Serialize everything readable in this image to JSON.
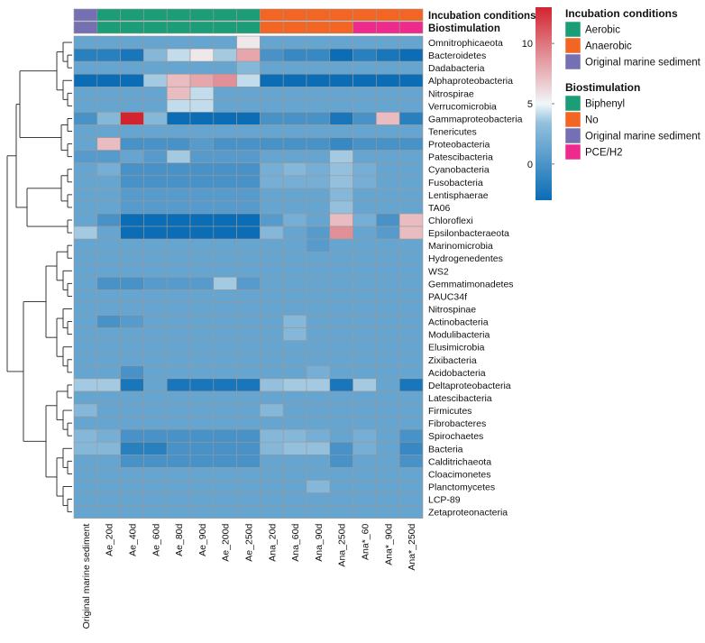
{
  "chart_data": {
    "type": "heatmap",
    "title": "",
    "columns": [
      "Original marine sediment",
      "Ae_20d",
      "Ae_40d",
      "Ae_60d",
      "Ae_80d",
      "Ae_90d",
      "Ae_200d",
      "Ae_250d",
      "Ana_20d",
      "Ana_60d",
      "Ana_90d",
      "Ana_250d",
      "Ana*_60",
      "Ana*_90d",
      "Ana*_250d"
    ],
    "rows": [
      "Omnitrophicaeota",
      "Bacteroidetes",
      "Dadabacteria",
      "Alphaproteobacteria",
      "Nitrospirae",
      "Verrucomicrobia",
      "Gammaproteobacteria",
      "Tenericutes",
      "Proteobacteria",
      "Patescibacteria",
      "Cyanobacteria",
      "Fusobacteria",
      "Lentisphaerae",
      "TA06",
      "Chloroflexi",
      "Epsilonbacteraeota",
      "Marinomicrobia",
      "Hydrogenedentes",
      "WS2",
      "Gemmatimonadetes",
      "PAUC34f",
      "Nitrospinae",
      "Actinobacteria",
      "Modulibacteria",
      "Elusimicrobia",
      "Zixibacteria",
      "Acidobacteria",
      "Deltaproteobacteria",
      "Latescibacteria",
      "Firmicutes",
      "Fibrobacteres",
      "Spirochaetes",
      "Bacteria",
      "Calditrichaeota",
      "Cloacimonetes",
      "Planctomycetes",
      "LCP-89",
      "Zetaproteonacteria"
    ],
    "values": [
      [
        0,
        0,
        0,
        0,
        0,
        0,
        0,
        4,
        0,
        0,
        0,
        0,
        0,
        0,
        0
      ],
      [
        -2,
        -2,
        -2.5,
        1,
        3,
        4,
        2,
        7,
        -1,
        -1.5,
        -1.5,
        -3,
        -2,
        -2.5,
        -3
      ],
      [
        0,
        0,
        0,
        0,
        0,
        0,
        0,
        1,
        0,
        0,
        0,
        0,
        0,
        0,
        0
      ],
      [
        -3,
        -3,
        -3,
        2,
        6,
        7,
        8,
        3,
        -3,
        -3,
        -3,
        -3,
        -3,
        -3,
        -3
      ],
      [
        0,
        0,
        0,
        0,
        6,
        3,
        0,
        0,
        0,
        0,
        0,
        0,
        0,
        0,
        0
      ],
      [
        0,
        0,
        0,
        0,
        3,
        3,
        0,
        0,
        0,
        0,
        0,
        0,
        0,
        0,
        0
      ],
      [
        -1,
        1,
        13,
        1,
        -3,
        -3,
        -3,
        -3,
        -1,
        -1,
        -1,
        -2.5,
        -1,
        6,
        -2
      ],
      [
        0,
        0,
        0,
        0,
        0,
        0,
        0,
        0,
        0,
        0,
        0,
        0,
        0,
        0,
        0
      ],
      [
        0,
        6,
        -1,
        -1,
        -1,
        -0.5,
        -1,
        -1,
        -1,
        -1,
        -1,
        -1.5,
        -1,
        -1,
        -1
      ],
      [
        -0.5,
        -0.5,
        0,
        -0.5,
        2,
        -0.5,
        -0.5,
        -0.5,
        0,
        0,
        0,
        2,
        0,
        0,
        0
      ],
      [
        0,
        0.5,
        -1,
        -1,
        -1,
        -1,
        -1,
        -1,
        0.5,
        1,
        0.5,
        1.5,
        0.5,
        0,
        0
      ],
      [
        0,
        0,
        -1,
        -1,
        -1,
        -1,
        -1,
        -1,
        0.5,
        0.5,
        0.5,
        1.5,
        0.5,
        0,
        0
      ],
      [
        0,
        0,
        -0.5,
        -0.5,
        -0.5,
        -0.5,
        -0.5,
        -0.5,
        0,
        0,
        0,
        1,
        0,
        0,
        0
      ],
      [
        0,
        0,
        -0.5,
        -0.5,
        -0.5,
        -0.5,
        -0.5,
        -0.5,
        0,
        0,
        0,
        1.5,
        0,
        0,
        0
      ],
      [
        0,
        -1,
        -3,
        -3,
        -3,
        -3,
        -3,
        -3,
        -0.5,
        0.5,
        0,
        6,
        0.5,
        -1,
        6
      ],
      [
        2,
        0,
        -3,
        -3,
        -3,
        -3,
        -3,
        -3,
        1,
        0,
        -0.5,
        8,
        0,
        -0.5,
        6
      ],
      [
        0,
        0,
        0,
        0,
        0,
        0,
        0,
        0,
        0,
        0,
        -0.5,
        0,
        0,
        0,
        0
      ],
      [
        0,
        0,
        0,
        0,
        0,
        0,
        0,
        0,
        0,
        0,
        0,
        0,
        0,
        0,
        0
      ],
      [
        0,
        0,
        0,
        0,
        0,
        0,
        0,
        0,
        0,
        0,
        0,
        0,
        0,
        0,
        0
      ],
      [
        0,
        -1,
        -1,
        -0.5,
        -0.5,
        -0.5,
        2,
        -0.5,
        0,
        0,
        0,
        0,
        0,
        0,
        0
      ],
      [
        0,
        0,
        0,
        0,
        0,
        0,
        0,
        0,
        0,
        0,
        0,
        0,
        0,
        0,
        0
      ],
      [
        0,
        0,
        0,
        0,
        0,
        0,
        0,
        0,
        0,
        0,
        0,
        0,
        0,
        0,
        0
      ],
      [
        0,
        -1,
        -0.5,
        0,
        0,
        0,
        0,
        0,
        0,
        1,
        0,
        0,
        0,
        0,
        0
      ],
      [
        0,
        0,
        0,
        0,
        0,
        0,
        0,
        0,
        0,
        1,
        0,
        0,
        0,
        0,
        0
      ],
      [
        0,
        0,
        0,
        0,
        0,
        0,
        0,
        0,
        0,
        0,
        0,
        0,
        0,
        0,
        0
      ],
      [
        0,
        0,
        0,
        0,
        0,
        0,
        0,
        0,
        0,
        0,
        0,
        0,
        0,
        0,
        0
      ],
      [
        0,
        0,
        -1,
        0,
        0,
        0,
        0,
        0,
        0,
        0,
        0.5,
        0,
        0,
        0,
        0
      ],
      [
        2,
        2,
        -2.5,
        0,
        -2.5,
        -2.5,
        -2.5,
        -2.5,
        1.5,
        2,
        2,
        -2.5,
        2,
        0,
        -2.5
      ],
      [
        0,
        0,
        0,
        0,
        0,
        0,
        0,
        0,
        0,
        0,
        0,
        0,
        0,
        0,
        0
      ],
      [
        1,
        0,
        0,
        0,
        0,
        0,
        0,
        0,
        1,
        0,
        0,
        0,
        0,
        0,
        0
      ],
      [
        0,
        0,
        0,
        0,
        0,
        0,
        0,
        0,
        0,
        0,
        0,
        0,
        0,
        0,
        0
      ],
      [
        1,
        0.5,
        -1,
        -1,
        -1,
        -1,
        -1,
        -1,
        1,
        1,
        0.5,
        0,
        0.5,
        0,
        -1
      ],
      [
        1,
        1,
        -2,
        -2,
        -1,
        -1,
        -1,
        -1,
        1,
        1.5,
        1.5,
        -1,
        0.5,
        0,
        -1.5
      ],
      [
        0,
        0,
        -1,
        -1,
        -1,
        -1,
        -1,
        -1,
        0,
        0,
        0,
        -1,
        0,
        0,
        -1
      ],
      [
        0,
        0,
        0,
        0,
        0,
        0,
        0,
        0,
        0,
        0,
        0,
        0,
        0,
        0,
        0
      ],
      [
        0,
        0,
        0,
        0,
        0,
        0,
        0,
        0,
        0,
        0,
        1,
        0,
        0,
        0,
        0
      ],
      [
        0,
        0,
        0,
        0,
        0,
        0,
        0,
        0,
        0,
        0,
        0,
        0,
        0,
        0,
        0
      ],
      [
        0,
        0,
        0,
        0,
        0,
        0,
        0,
        0,
        0,
        0,
        0,
        0,
        0,
        0,
        0
      ]
    ],
    "color_scale": {
      "ticks": [
        0,
        5,
        10
      ],
      "min": -3,
      "max": 13,
      "low_color": "#0a6db5",
      "mid_color": "#f0f7f9",
      "high_color": "#d3232f"
    },
    "annotation_rows": [
      {
        "name": "Incubation conditions",
        "levels": [
          "Original marine sediment",
          "Aerobic",
          "Aerobic",
          "Aerobic",
          "Aerobic",
          "Aerobic",
          "Aerobic",
          "Aerobic",
          "Anaerobic",
          "Anaerobic",
          "Anaerobic",
          "Anaerobic",
          "Anaerobic",
          "Anaerobic",
          "Anaerobic"
        ]
      },
      {
        "name": "Biostimulation",
        "levels": [
          "Original marine sediment",
          "Biphenyl",
          "Biphenyl",
          "Biphenyl",
          "Biphenyl",
          "Biphenyl",
          "Biphenyl",
          "Biphenyl",
          "No",
          "No",
          "No",
          "No",
          "PCE/H2",
          "PCE/H2",
          "PCE/H2"
        ]
      }
    ],
    "legends": [
      {
        "title": "Incubation conditions",
        "entries": [
          {
            "label": "Aerobic",
            "color": "#1b9e77"
          },
          {
            "label": "Anaerobic",
            "color": "#f26522"
          },
          {
            "label": "Original marine sediment",
            "color": "#7570b3"
          }
        ]
      },
      {
        "title": "Biostimulation",
        "entries": [
          {
            "label": "Biphenyl",
            "color": "#1b9e77"
          },
          {
            "label": "No",
            "color": "#f26522"
          },
          {
            "label": "Original marine sediment",
            "color": "#7570b3"
          },
          {
            "label": "PCE/H2",
            "color": "#ee2a8c"
          }
        ]
      }
    ],
    "dendrogram": "rows clustered (left side)"
  }
}
